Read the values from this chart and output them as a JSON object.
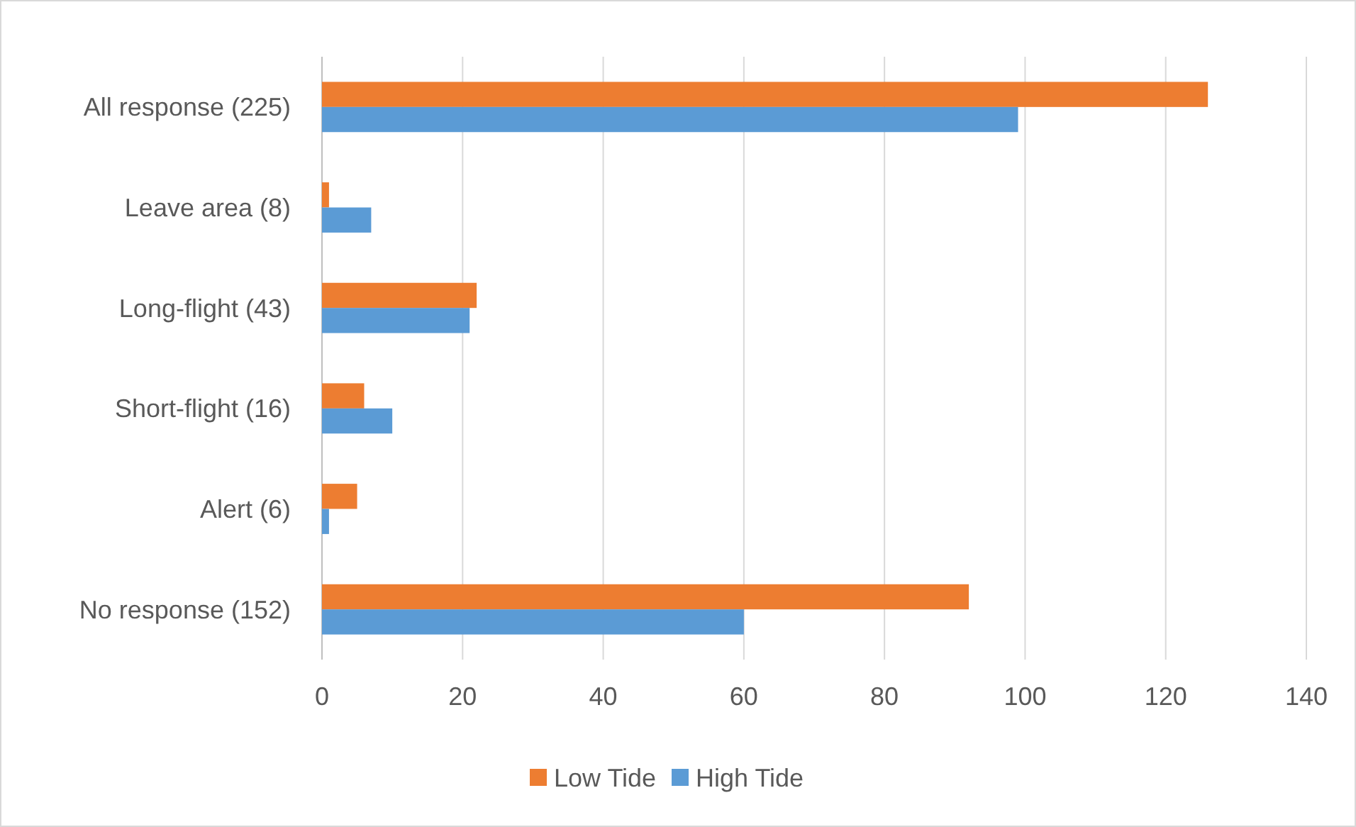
{
  "chart_data": {
    "type": "bar",
    "orientation": "horizontal",
    "categories": [
      "All response (225)",
      "Leave area (8)",
      "Long-flight (43)",
      "Short-flight (16)",
      "Alert (6)",
      "No response (152)"
    ],
    "series": [
      {
        "name": "Low Tide",
        "color": "#ed7d31",
        "values": [
          126,
          1,
          22,
          6,
          5,
          92
        ]
      },
      {
        "name": "High Tide",
        "color": "#5b9bd5",
        "values": [
          99,
          7,
          21,
          10,
          1,
          60
        ]
      }
    ],
    "xlim": [
      0,
      140
    ],
    "xticks": [
      0,
      20,
      40,
      60,
      80,
      100,
      120,
      140
    ],
    "grid": "x",
    "legend": "bottom"
  }
}
